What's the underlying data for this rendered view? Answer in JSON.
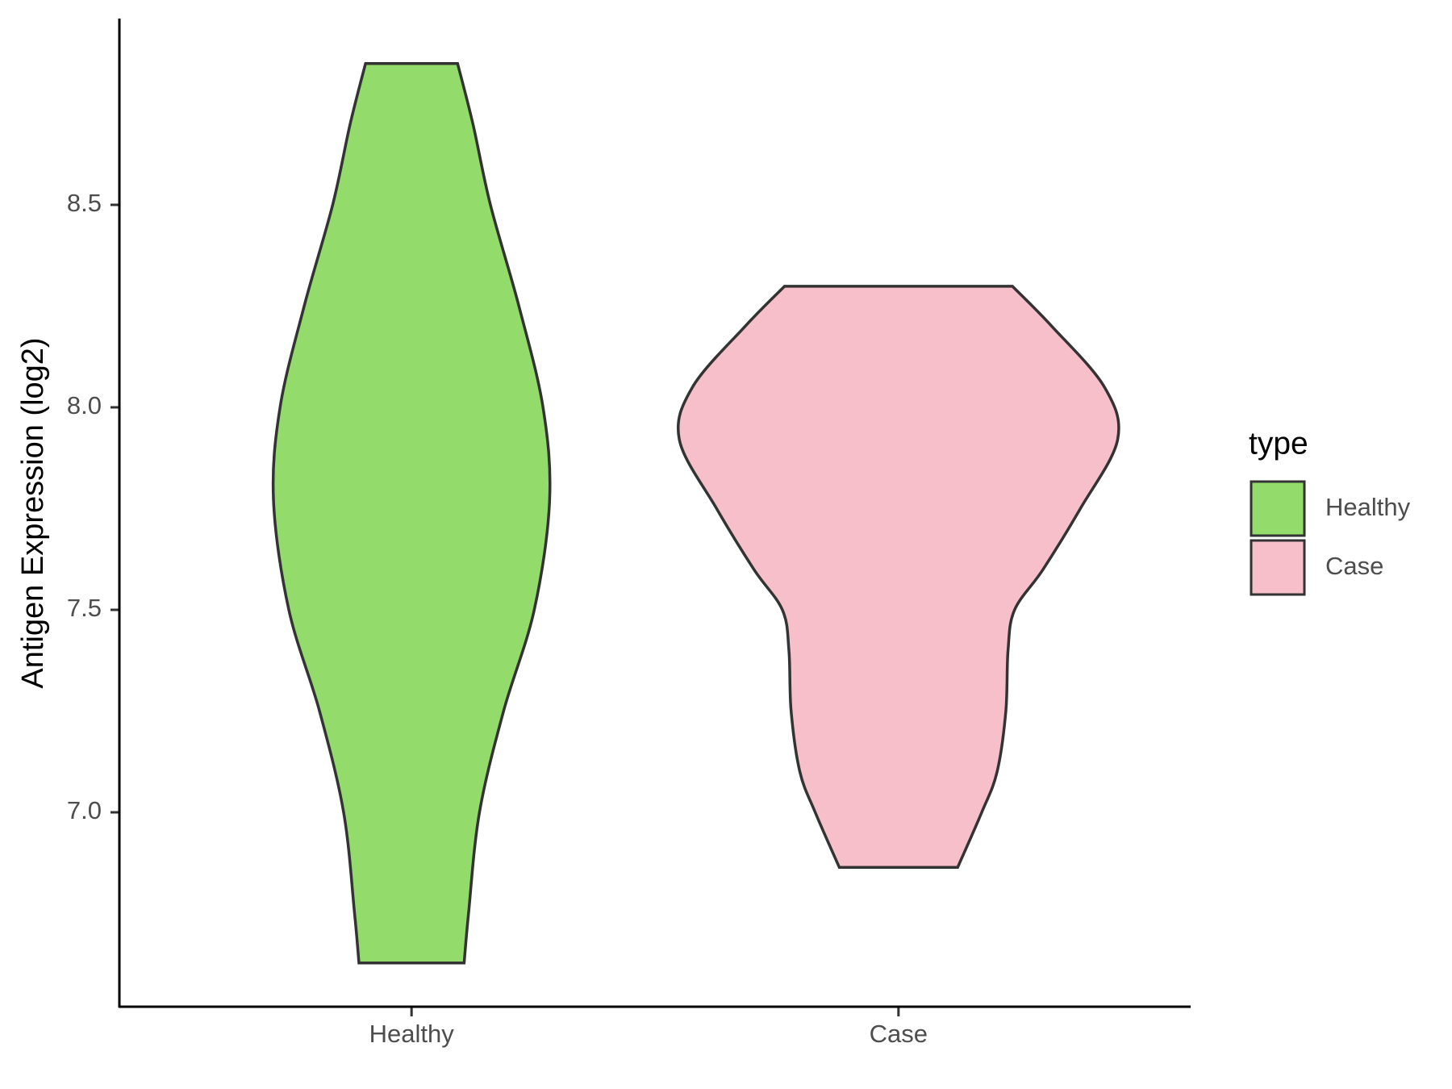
{
  "chart_data": {
    "type": "violin",
    "y_label": "Antigen Expression (log2)",
    "categories": [
      "Healthy",
      "Case"
    ],
    "ylim": [
      6.52,
      8.96
    ],
    "yticks": [
      {
        "value": 7,
        "label": "7.0"
      },
      7.5,
      {
        "value": 8,
        "label": "8.0"
      },
      8.5
    ],
    "legend_title": "type",
    "legend": "right",
    "series": [
      {
        "name": "Healthy",
        "color": "#93dc6b",
        "y": [
          6.628,
          6.75,
          7.0,
          7.25,
          7.5,
          7.77,
          8.0,
          8.25,
          8.5,
          8.7,
          8.849
        ],
        "density": [
          0.24,
          0.26,
          0.31,
          0.42,
          0.56,
          0.63,
          0.6,
          0.49,
          0.36,
          0.28,
          0.21
        ]
      },
      {
        "name": "Case",
        "color": "#f7bfca",
        "y": [
          6.864,
          7.0,
          7.1,
          7.25,
          7.4,
          7.5,
          7.6,
          7.75,
          7.92,
          8.05,
          8.2,
          8.299
        ],
        "density": [
          0.27,
          0.38,
          0.45,
          0.49,
          0.5,
          0.53,
          0.66,
          0.83,
          1.0,
          0.94,
          0.7,
          0.52
        ]
      }
    ]
  }
}
